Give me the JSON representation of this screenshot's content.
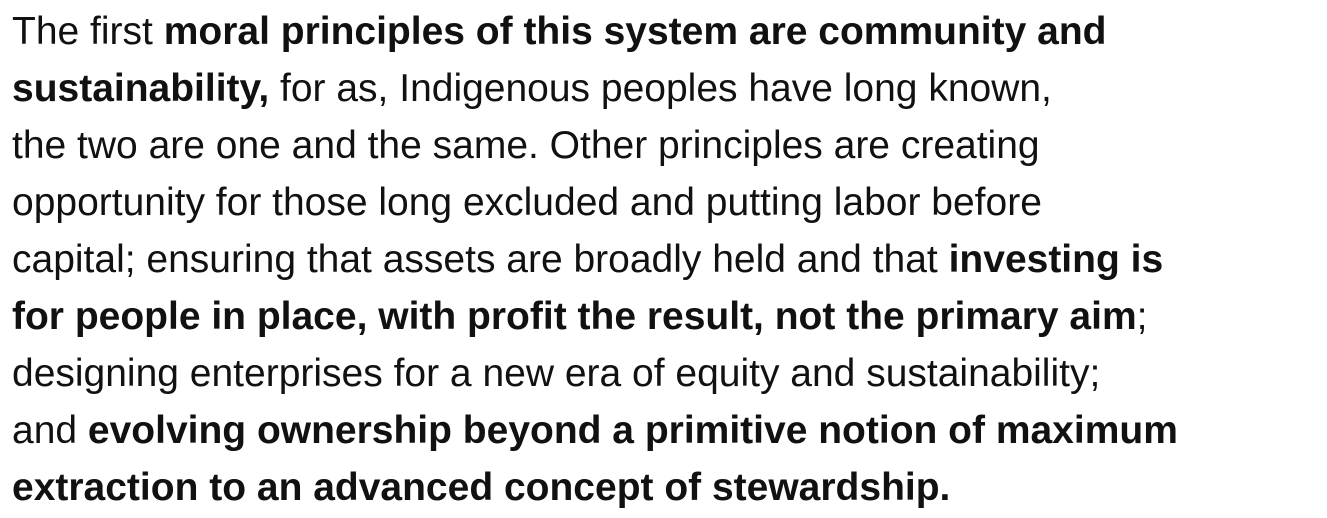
{
  "paragraph": {
    "lines": [
      [
        {
          "text": "The first ",
          "bold": false
        },
        {
          "text": "moral principles of this system are community and",
          "bold": true
        }
      ],
      [
        {
          "text": "sustainability,",
          "bold": true
        },
        {
          "text": " for as, Indigenous peoples have long known,",
          "bold": false
        }
      ],
      [
        {
          "text": "the two are one and the same. Other principles are creating",
          "bold": false
        }
      ],
      [
        {
          "text": "opportunity for those long excluded and putting labor before",
          "bold": false
        }
      ],
      [
        {
          "text": "capital; ensuring that assets are broadly held and that ",
          "bold": false
        },
        {
          "text": "investing is",
          "bold": true
        }
      ],
      [
        {
          "text": "for people in place, with profit the result, not the primary aim",
          "bold": true
        },
        {
          "text": ";",
          "bold": false
        }
      ],
      [
        {
          "text": "designing enterprises for a new era of equity and sustainability;",
          "bold": false
        }
      ],
      [
        {
          "text": "and ",
          "bold": false
        },
        {
          "text": "evolving ownership beyond a primitive notion of maximum",
          "bold": true
        }
      ],
      [
        {
          "text": "extraction to an advanced concept of stewardship.",
          "bold": true
        }
      ]
    ]
  }
}
